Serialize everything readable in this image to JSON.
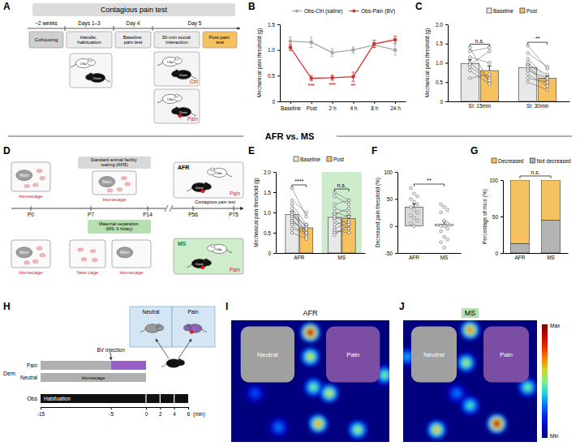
{
  "figure": {
    "divider_title": "AFR vs. MS"
  },
  "diagrams": {
    "A": {
      "panel": "A",
      "title": "Contagious pain test",
      "periods": [
        "~2 weeks",
        "Days 1–3",
        "Day 4",
        "Day 5"
      ],
      "stages": [
        "Cohousing",
        "Handle, habituation",
        "Baseline pain test",
        "30-min social interaction",
        "Post-pain test"
      ],
      "observer": "Obs",
      "demonstrator": "Dem",
      "conditions": [
        "Ctrl",
        "Pain"
      ]
    },
    "D": {
      "panel": "D",
      "timepoints": [
        "P0",
        "P7",
        "P14",
        "P56",
        "P75"
      ],
      "afr_label": "Standard animal facility rearing (AFR)",
      "ms_label": "Maternal separation (MS: 6 h/day)",
      "test_label": "Contagious pain test",
      "homecage": "Homecage",
      "new_cage": "New cage",
      "mom": "Mom",
      "groups": [
        "AFR",
        "MS"
      ],
      "observer": "Obs",
      "demonstrator": "Dem",
      "condition": "Pain"
    },
    "H": {
      "panel": "H",
      "injection_label": "BV injection",
      "demonstrator": "Dem",
      "rows": [
        "Pain",
        "Neutral"
      ],
      "homecage": "Homecage",
      "observer": "Obs",
      "habituation": "Habituation",
      "arena": [
        "Neutral",
        "Pain"
      ],
      "xlim": [
        -15,
        6
      ],
      "xticks": [
        -15,
        -5,
        0,
        2,
        4,
        6
      ],
      "unit": "(min)",
      "injection_time": -5,
      "test_start": 0
    }
  },
  "heatmaps": [
    {
      "panel": "I",
      "title": "AFR",
      "zones": [
        "Neutral",
        "Pain"
      ],
      "xlim": [
        0,
        1
      ],
      "ylim": [
        0,
        1
      ],
      "hotspots": [
        {
          "x": 0.5,
          "y": 0.1,
          "intensity": 0.95
        },
        {
          "x": 0.5,
          "y": 0.3,
          "intensity": 0.6
        },
        {
          "x": 0.52,
          "y": 0.55,
          "intensity": 0.5
        },
        {
          "x": 0.97,
          "y": 0.45,
          "intensity": 0.5
        },
        {
          "x": 0.62,
          "y": 0.6,
          "intensity": 0.6
        },
        {
          "x": 0.55,
          "y": 0.85,
          "intensity": 0.7
        },
        {
          "x": 0.8,
          "y": 0.9,
          "intensity": 0.55
        },
        {
          "x": 0.3,
          "y": 0.88,
          "intensity": 0.3
        },
        {
          "x": 0.15,
          "y": 0.6,
          "intensity": 0.25
        }
      ]
    },
    {
      "panel": "J",
      "title": "MS",
      "zones": [
        "Neutral",
        "Pain"
      ],
      "xlim": [
        0,
        1
      ],
      "ylim": [
        0,
        1
      ],
      "hotspots": [
        {
          "x": 0.5,
          "y": 0.08,
          "intensity": 0.75
        },
        {
          "x": 0.47,
          "y": 0.35,
          "intensity": 0.55
        },
        {
          "x": 0.03,
          "y": 0.3,
          "intensity": 0.35
        },
        {
          "x": 0.25,
          "y": 0.9,
          "intensity": 0.65
        },
        {
          "x": 0.7,
          "y": 0.85,
          "intensity": 0.95
        },
        {
          "x": 0.93,
          "y": 0.55,
          "intensity": 0.5
        },
        {
          "x": 0.5,
          "y": 0.7,
          "intensity": 0.45
        },
        {
          "x": 0.4,
          "y": 0.6,
          "intensity": 0.3
        }
      ]
    }
  ],
  "heatmap_colorbar": {
    "range": [
      0,
      1
    ],
    "min_label": "Min",
    "max_label": "Max"
  },
  "chart_data": [
    {
      "panel": "B",
      "type": "line",
      "categories": [
        "Baseline",
        "Post",
        "2 h",
        "4 h",
        "8 h",
        "24 h"
      ],
      "series": [
        {
          "name": "Obs-Ctrl (saline)",
          "color": "#a6a6a6",
          "marker": "circle",
          "values": [
            1.17,
            1.15,
            0.95,
            1.0,
            1.1,
            1.0
          ],
          "errors": [
            0.08,
            0.1,
            0.07,
            0.06,
            0.05,
            0.1
          ]
        },
        {
          "name": "Obs-Pain (BV)",
          "color": "#d93030",
          "marker": "circle",
          "values": [
            1.05,
            0.45,
            0.46,
            0.48,
            1.12,
            1.2
          ],
          "errors": [
            0.06,
            0.05,
            0.05,
            0.09,
            0.07,
            0.07
          ],
          "annotations": [
            null,
            "***",
            "***",
            "**",
            null,
            null
          ]
        }
      ],
      "y_label": "Mechanical pain threshold (g)",
      "ylim": [
        0,
        1.5
      ],
      "yticks": [
        0,
        0.5,
        {
          "value": 1,
          "label": "1.0"
        },
        1.5
      ],
      "legend": "top"
    },
    {
      "panel": "C",
      "type": "bar",
      "categories": [
        "SI: 15min",
        "SI: 30min"
      ],
      "series": [
        {
          "name": "Baseline",
          "color": "#e8e8e8",
          "values": [
            0.98,
            0.88
          ],
          "errors": [
            0.1,
            0.08
          ],
          "points": [
            [
              1.4,
              1.3,
              1.15,
              1.0,
              0.95,
              0.9,
              0.8,
              0.6
            ],
            [
              1.45,
              1.25,
              1.1,
              1.0,
              0.95,
              0.9,
              0.85,
              0.8,
              0.7,
              0.6,
              0.5
            ]
          ]
        },
        {
          "name": "Post",
          "color": "#f6c15f",
          "values": [
            0.8,
            0.6
          ],
          "errors": [
            0.12,
            0.06
          ],
          "points": [
            [
              0.5,
              1.4,
              1.0,
              0.6,
              1.3,
              0.55,
              0.45,
              0.7
            ],
            [
              0.85,
              0.9,
              0.6,
              0.55,
              0.7,
              0.5,
              0.45,
              0.6,
              0.4,
              0.5,
              0.3
            ]
          ]
        }
      ],
      "annotations": [
        "n.s.",
        "**"
      ],
      "y_label": "Mechanical pain threshold (g)",
      "ylim": [
        0,
        2
      ],
      "yticks": [
        0,
        0.5,
        {
          "value": 1,
          "label": "1.0"
        },
        1.5,
        {
          "value": 2,
          "label": "2.0"
        }
      ],
      "legend": "top"
    },
    {
      "panel": "E",
      "type": "bar",
      "categories": [
        "AFR",
        "MS"
      ],
      "series": [
        {
          "name": "Baseline",
          "color": "#e8e8e8",
          "values": [
            0.95,
            0.88
          ],
          "errors": [
            0.08,
            0.08
          ],
          "points": [
            [
              1.6,
              1.3,
              1.2,
              1.1,
              1.0,
              1.0,
              0.95,
              0.9,
              0.85,
              0.8,
              0.75,
              0.7,
              0.6,
              0.5
            ],
            [
              1.5,
              1.4,
              1.2,
              1.1,
              1.0,
              0.95,
              0.9,
              0.85,
              0.8,
              0.7,
              0.6,
              0.55,
              0.5,
              0.45
            ]
          ]
        },
        {
          "name": "Post",
          "color": "#f6c15f",
          "values": [
            0.62,
            0.85
          ],
          "errors": [
            0.06,
            0.08
          ],
          "points": [
            [
              0.9,
              1.0,
              0.7,
              0.6,
              0.65,
              0.5,
              0.55,
              0.7,
              0.45,
              0.5,
              0.6,
              0.4,
              0.5,
              0.35
            ],
            [
              1.3,
              1.2,
              1.3,
              1.0,
              0.9,
              1.1,
              0.7,
              0.9,
              0.6,
              0.8,
              0.75,
              0.5,
              0.6,
              0.7
            ]
          ]
        }
      ],
      "annotations": [
        "****",
        "n.s."
      ],
      "y_label": "Mechanical pain threshold (g)",
      "ylim": [
        0,
        2
      ],
      "yticks": [
        0,
        0.5,
        {
          "value": 1,
          "label": "1.0"
        },
        1.5,
        {
          "value": 2,
          "label": "2.0"
        }
      ],
      "legend": "top"
    },
    {
      "panel": "F",
      "type": "bar",
      "categories": [
        "AFR",
        "MS"
      ],
      "values": [
        35,
        3
      ],
      "errors": [
        6,
        6
      ],
      "colors": [
        "#d9d9d9",
        "#ffffff"
      ],
      "points": [
        [
          70,
          60,
          55,
          50,
          45,
          40,
          35,
          30,
          25,
          20,
          15,
          10,
          5,
          0
        ],
        [
          40,
          35,
          30,
          25,
          10,
          5,
          0,
          0,
          -5,
          -10,
          -20,
          -25,
          -30,
          -40
        ]
      ],
      "annotation": "**",
      "y_label": "Decreased pain threshold (%)",
      "ylim": [
        -50,
        100
      ],
      "yticks": [
        -50,
        0,
        50,
        100
      ]
    },
    {
      "panel": "G",
      "type": "bar",
      "stacked": true,
      "categories": [
        "AFR",
        "MS"
      ],
      "series": [
        {
          "name": "Decreased",
          "color": "#f6c15f",
          "values": [
            87,
            55
          ]
        },
        {
          "name": "Not decreased",
          "color": "#b3b3b3",
          "values": [
            13,
            45
          ]
        }
      ],
      "annotation": "n.s.",
      "y_label": "Percentage of mice (%)",
      "ylim": [
        0,
        100
      ],
      "yticks": [
        0,
        50,
        100
      ],
      "legend": "top"
    }
  ]
}
